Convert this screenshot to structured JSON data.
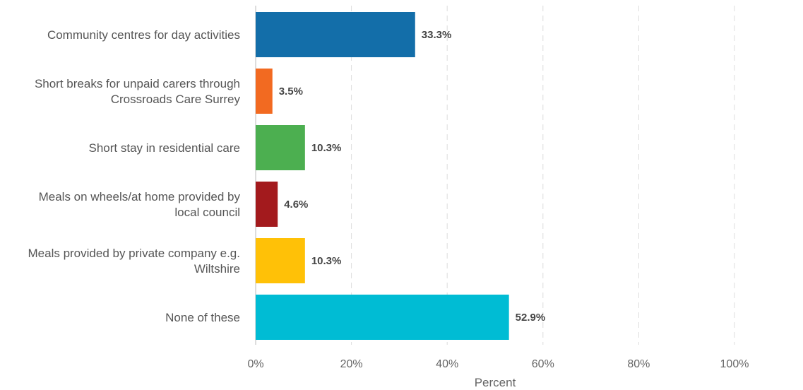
{
  "chart_data": {
    "type": "bar",
    "orientation": "horizontal",
    "categories": [
      [
        "Community centres for day activities"
      ],
      [
        "Short breaks for unpaid carers through",
        "Crossroads Care  Surrey"
      ],
      [
        "Short stay in residential care"
      ],
      [
        "Meals on wheels/at home provided by",
        "local council"
      ],
      [
        "Meals provided by private company e.g.",
        "Wiltshire"
      ],
      [
        "None of these"
      ]
    ],
    "values": [
      33.3,
      3.5,
      10.3,
      4.6,
      10.3,
      52.9
    ],
    "data_labels": [
      "33.3%",
      "3.5%",
      "10.3%",
      "4.6%",
      "10.3%",
      "52.9%"
    ],
    "colors": [
      "#136ea9",
      "#f26a21",
      "#4caf50",
      "#a31a1d",
      "#ffc107",
      "#00bcd4"
    ],
    "xlabel": "Percent",
    "xlim": [
      0,
      100
    ],
    "x_ticks": [
      0,
      20,
      40,
      60,
      80,
      100
    ],
    "x_tick_labels": [
      "0%",
      "20%",
      "40%",
      "60%",
      "80%",
      "100%"
    ],
    "grid": true
  }
}
